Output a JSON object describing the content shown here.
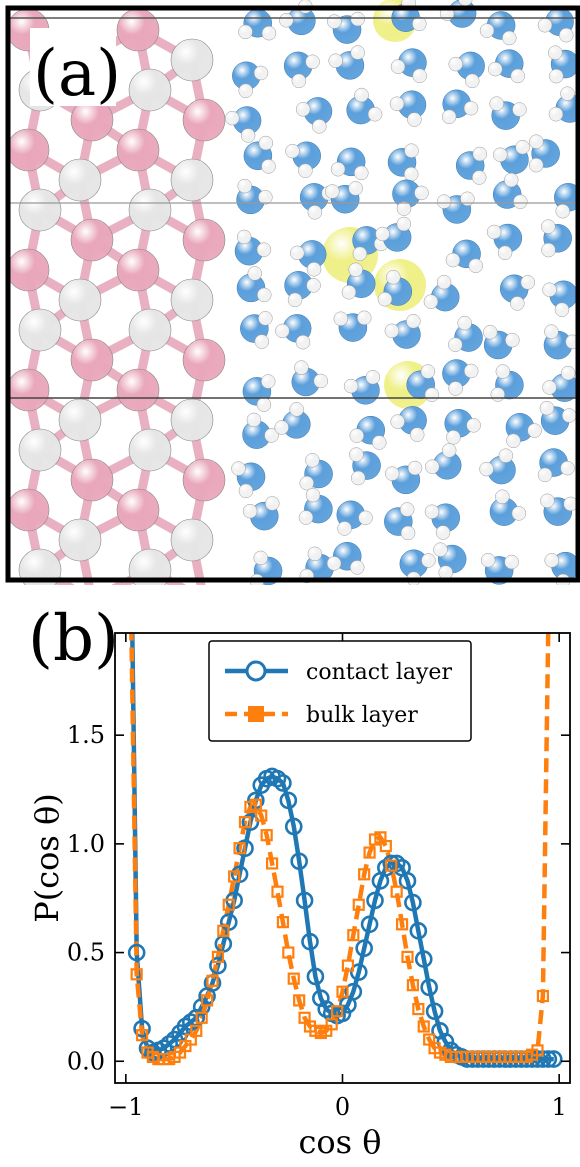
{
  "panel_a": {
    "label": "(a)",
    "colors": {
      "substrate_pink": "#e9a7bb",
      "substrate_white": "#e6e6e6",
      "bond_pink": "#e9b0c2",
      "water_oxygen": "#5b9fdb",
      "water_hydrogen": "#f2f2f2",
      "ion_yellow": "#eeee7a"
    }
  },
  "panel_b": {
    "label": "(b)"
  },
  "chart_data": {
    "type": "line",
    "title": "",
    "xlabel": "cos θ",
    "ylabel": "P(cos θ)",
    "xlim": [
      -1.05,
      1.05
    ],
    "ylim": [
      -0.1,
      1.97
    ],
    "xticks": [
      -1,
      0,
      1
    ],
    "xtick_labels": [
      "−1",
      "0",
      "1"
    ],
    "yticks": [
      0.0,
      0.5,
      1.0,
      1.5
    ],
    "ytick_labels": [
      "0.0",
      "0.5",
      "1.0",
      "1.5"
    ],
    "grid": false,
    "legend_position": "top-center",
    "series": [
      {
        "name": "contact layer",
        "color": "#1f77b4",
        "linestyle": "solid",
        "marker": "circle-open",
        "x": [
          -0.975,
          -0.95,
          -0.925,
          -0.9,
          -0.875,
          -0.85,
          -0.825,
          -0.8,
          -0.775,
          -0.75,
          -0.725,
          -0.7,
          -0.675,
          -0.65,
          -0.625,
          -0.6,
          -0.575,
          -0.55,
          -0.525,
          -0.5,
          -0.475,
          -0.45,
          -0.425,
          -0.4,
          -0.375,
          -0.35,
          -0.325,
          -0.3,
          -0.275,
          -0.25,
          -0.225,
          -0.2,
          -0.175,
          -0.15,
          -0.125,
          -0.1,
          -0.075,
          -0.05,
          -0.025,
          0.0,
          0.025,
          0.05,
          0.075,
          0.1,
          0.125,
          0.15,
          0.175,
          0.2,
          0.225,
          0.25,
          0.275,
          0.3,
          0.325,
          0.35,
          0.375,
          0.4,
          0.425,
          0.45,
          0.475,
          0.5,
          0.525,
          0.55,
          0.575,
          0.6,
          0.625,
          0.65,
          0.675,
          0.7,
          0.725,
          0.75,
          0.775,
          0.8,
          0.825,
          0.85,
          0.875,
          0.9,
          0.925,
          0.95,
          0.975
        ],
        "y": [
          2.3,
          0.5,
          0.15,
          0.06,
          0.04,
          0.05,
          0.06,
          0.08,
          0.1,
          0.13,
          0.16,
          0.18,
          0.2,
          0.25,
          0.3,
          0.36,
          0.44,
          0.54,
          0.64,
          0.74,
          0.86,
          0.98,
          1.1,
          1.2,
          1.27,
          1.3,
          1.31,
          1.3,
          1.28,
          1.2,
          1.08,
          0.92,
          0.74,
          0.55,
          0.39,
          0.29,
          0.24,
          0.22,
          0.21,
          0.22,
          0.26,
          0.32,
          0.41,
          0.52,
          0.63,
          0.74,
          0.83,
          0.89,
          0.91,
          0.91,
          0.89,
          0.83,
          0.73,
          0.6,
          0.47,
          0.34,
          0.23,
          0.14,
          0.09,
          0.05,
          0.03,
          0.02,
          0.01,
          0.01,
          0.01,
          0.01,
          0.01,
          0.01,
          0.01,
          0.01,
          0.01,
          0.01,
          0.01,
          0.01,
          0.01,
          0.01,
          0.01,
          0.01,
          0.01
        ]
      },
      {
        "name": "bulk layer",
        "color": "#ff7f0e",
        "linestyle": "dashed",
        "marker": "square-open",
        "x": [
          -0.975,
          -0.95,
          -0.925,
          -0.9,
          -0.875,
          -0.85,
          -0.825,
          -0.8,
          -0.775,
          -0.75,
          -0.725,
          -0.7,
          -0.675,
          -0.65,
          -0.625,
          -0.6,
          -0.575,
          -0.55,
          -0.525,
          -0.5,
          -0.475,
          -0.45,
          -0.425,
          -0.4,
          -0.375,
          -0.35,
          -0.325,
          -0.3,
          -0.275,
          -0.25,
          -0.225,
          -0.2,
          -0.175,
          -0.15,
          -0.125,
          -0.1,
          -0.075,
          -0.05,
          -0.025,
          0.0,
          0.025,
          0.05,
          0.075,
          0.1,
          0.125,
          0.15,
          0.175,
          0.2,
          0.225,
          0.25,
          0.275,
          0.3,
          0.325,
          0.35,
          0.375,
          0.4,
          0.425,
          0.45,
          0.475,
          0.5,
          0.525,
          0.55,
          0.575,
          0.6,
          0.625,
          0.65,
          0.675,
          0.7,
          0.725,
          0.75,
          0.775,
          0.8,
          0.825,
          0.85,
          0.875,
          0.9,
          0.925,
          0.95,
          0.975
        ],
        "y": [
          2.0,
          0.4,
          0.12,
          0.04,
          0.02,
          0.01,
          0.01,
          0.01,
          0.02,
          0.04,
          0.07,
          0.1,
          0.14,
          0.2,
          0.28,
          0.37,
          0.48,
          0.6,
          0.72,
          0.85,
          0.98,
          1.1,
          1.17,
          1.18,
          1.13,
          1.04,
          0.91,
          0.78,
          0.64,
          0.5,
          0.38,
          0.28,
          0.2,
          0.16,
          0.14,
          0.13,
          0.14,
          0.17,
          0.23,
          0.32,
          0.44,
          0.58,
          0.72,
          0.86,
          0.96,
          1.02,
          1.03,
          0.99,
          0.9,
          0.78,
          0.63,
          0.48,
          0.35,
          0.24,
          0.16,
          0.1,
          0.06,
          0.04,
          0.03,
          0.02,
          0.02,
          0.02,
          0.02,
          0.02,
          0.02,
          0.02,
          0.02,
          0.02,
          0.02,
          0.02,
          0.02,
          0.02,
          0.02,
          0.02,
          0.03,
          0.05,
          0.3,
          2.0,
          2.0
        ]
      }
    ]
  }
}
